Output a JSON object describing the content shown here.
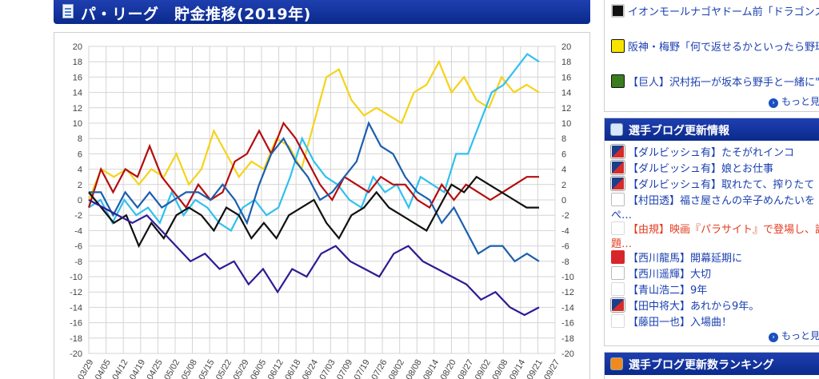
{
  "header": {
    "title": "パ・リーグ　貯金推移(2019年)"
  },
  "chart_data": {
    "type": "line",
    "title": "パ・リーグ 貯金推移(2019年)",
    "ylim": [
      -20,
      20
    ],
    "y_ticks": [
      20,
      18,
      16,
      14,
      12,
      10,
      8,
      6,
      4,
      2,
      0,
      -2,
      -4,
      -6,
      -8,
      -10,
      -12,
      -14,
      -16,
      -18,
      -20
    ],
    "x_ticks": [
      "03/29",
      "04/05",
      "04/12",
      "04/19",
      "04/25",
      "05/02",
      "05/08",
      "05/15",
      "05/22",
      "05/29",
      "06/05",
      "06/12",
      "06/18",
      "06/24",
      "07/03",
      "07/09",
      "07/19",
      "07/26",
      "08/02",
      "08/08",
      "08/14",
      "08/20",
      "08/27",
      "09/02",
      "09/08",
      "09/14",
      "09/21",
      "09/27"
    ],
    "series": [
      {
        "color": "#f5d31a",
        "values": [
          0,
          4,
          3,
          4,
          2,
          4,
          3,
          6,
          2,
          4,
          9,
          6,
          3,
          5,
          4,
          8,
          7,
          4,
          10,
          16,
          17,
          13,
          11,
          12,
          11,
          10,
          14,
          15,
          18,
          14,
          16,
          13,
          12,
          16,
          14,
          15,
          14
        ]
      },
      {
        "color": "#30c0ef",
        "values": [
          -1,
          0,
          -3,
          0,
          -2,
          -1,
          -3,
          1,
          -2,
          0,
          -1,
          -3,
          -4,
          -1,
          0,
          -2,
          -1,
          3,
          8,
          5,
          3,
          2,
          0,
          -1,
          3,
          1,
          2,
          -1,
          3,
          2,
          1,
          6,
          6,
          10,
          14,
          15,
          17,
          19,
          18
        ]
      },
      {
        "color": "#b50d10",
        "values": [
          -1,
          4,
          1,
          4,
          3,
          7,
          3,
          1,
          -1,
          2,
          0,
          1,
          5,
          6,
          9,
          6,
          10,
          8,
          5,
          2,
          0,
          3,
          2,
          1,
          3,
          2,
          2,
          0,
          -1,
          2,
          0,
          2,
          1,
          0,
          1,
          2,
          3,
          3
        ]
      },
      {
        "color": "#1c5fad",
        "values": [
          1,
          1,
          -2,
          1,
          -1,
          1,
          -1,
          0,
          1,
          1,
          0,
          2,
          0,
          -3,
          2,
          6,
          8,
          5,
          3,
          0,
          1,
          3,
          5,
          10,
          7,
          6,
          3,
          1,
          0,
          -3,
          -1,
          -4,
          -7,
          -6,
          -6,
          -8,
          -7,
          -8
        ]
      },
      {
        "color": "#111111",
        "values": [
          1,
          -1,
          -3,
          -2,
          -6,
          -3,
          -5,
          -2,
          -1,
          -2,
          -4,
          -1,
          -2,
          -5,
          -3,
          -5,
          -2,
          -1,
          0,
          -3,
          -5,
          -2,
          -1,
          1,
          -1,
          -2,
          -3,
          -4,
          -1,
          2,
          1,
          3,
          2,
          1,
          0,
          -1,
          -1
        ]
      },
      {
        "color": "#301a94",
        "values": [
          0,
          -1,
          -2,
          -3,
          -2,
          -4,
          -6,
          -8,
          -7,
          -9,
          -8,
          -11,
          -9,
          -12,
          -9,
          -10,
          -7,
          -6,
          -8,
          -9,
          -10,
          -7,
          -6,
          -8,
          -9,
          -10,
          -11,
          -13,
          -12,
          -14,
          -15,
          -14
        ]
      }
    ]
  },
  "news": {
    "items": [
      {
        "icon": "dragons-icon",
        "text": "イオンモールナゴヤドーム前「ドラゴンズシ…"
      },
      {
        "icon": "tigers-icon",
        "text": "阪神・梅野「何で返せるかといったら野球でし…"
      },
      {
        "icon": "giants-icon",
        "text": "【巨人】沢村拓一が坂本ら野手と一緒に\"シ…"
      }
    ],
    "more": "もっと見る"
  },
  "blog": {
    "title": "選手ブログ更新情報",
    "items": [
      {
        "icon": "mlb-icon",
        "text": "【ダルビッシュ有】たそがれインコ",
        "red": false
      },
      {
        "icon": "mlb-icon",
        "text": "【ダルビッシュ有】娘とお仕事",
        "red": false
      },
      {
        "icon": "mlb-icon",
        "text": "【ダルビッシュ有】取れたて、搾りたて",
        "red": false
      },
      {
        "icon": "fighters-icon",
        "text": "【村田透】福さ屋さんの辛子めんたいをぺ…",
        "red": false
      },
      {
        "icon": "eagles-icon",
        "text": "【由規】映画『パラサイト』で登場し、話題…",
        "red": true
      },
      {
        "icon": "carp-icon",
        "text": "【西川龍馬】開幕延期に",
        "red": false
      },
      {
        "icon": "fighters-icon",
        "text": "【西川遥輝】大切",
        "red": false
      },
      {
        "icon": "eagles-icon",
        "text": "【青山浩二】9年",
        "red": false
      },
      {
        "icon": "mlb-icon",
        "text": "【田中将大】あれから9年。",
        "red": false
      },
      {
        "icon": "eagles-icon",
        "text": "【藤田一也】入場曲！",
        "red": false
      }
    ],
    "more": "もっと見る"
  },
  "ranking": {
    "title": "選手ブログ更新数ランキング"
  }
}
